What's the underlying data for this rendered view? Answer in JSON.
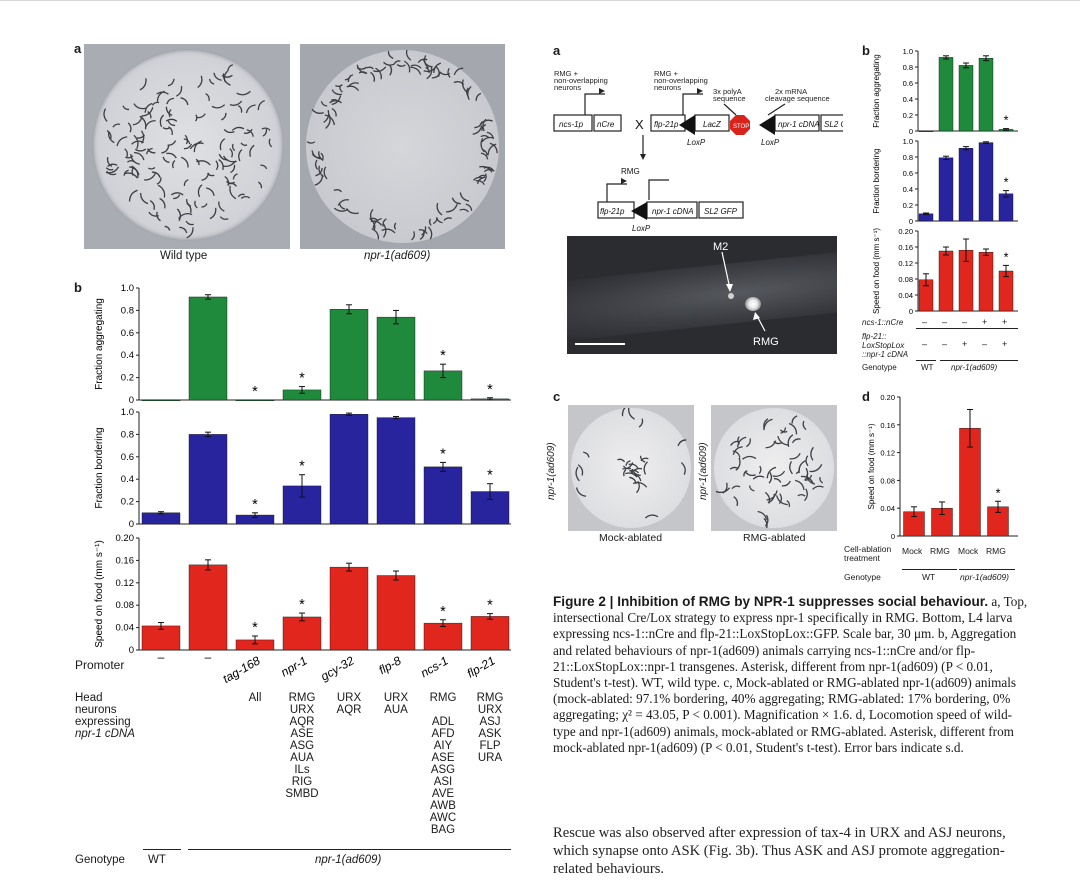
{
  "left": {
    "panel_a": {
      "label": "a",
      "images": [
        {
          "caption": "Wild type"
        },
        {
          "caption": "npr-1(ad609)"
        }
      ]
    },
    "panel_b": {
      "label": "b"
    },
    "promoter_header": "Promoter",
    "neuron_header": [
      "Head",
      "neurons",
      "expressing",
      "npr-1 cDNA"
    ],
    "genotype_header": "Genotype",
    "genotype_values": [
      "WT",
      "npr-1(ad609)"
    ],
    "promoters": [
      "–",
      "–",
      "tag-168",
      "npr-1",
      "gcy-32",
      "flp-8",
      "ncs-1",
      "flp-21"
    ],
    "neurons": [
      [],
      [],
      [
        "All"
      ],
      [
        "RMG",
        "URX",
        "AQR",
        "ASE",
        "ASG",
        "AUA",
        "ILs",
        "RIG",
        "SMBD"
      ],
      [
        "URX",
        "AQR"
      ],
      [
        "URX",
        "AUA"
      ],
      [
        "RMG",
        "",
        "ADL",
        "AFD",
        "AIY",
        "ASE",
        "ASG",
        "ASI",
        "AVE",
        "AWB",
        "AWC",
        "BAG"
      ],
      [
        "RMG",
        "URX",
        "ASJ",
        "ASK",
        "FLP",
        "URA"
      ]
    ]
  },
  "right": {
    "panel_a": {
      "label": "a",
      "labels": [
        "RMG +",
        "non-overlapping",
        "neurons",
        "RMG +",
        "non-overlapping",
        "neurons",
        "3x polyA",
        "sequence",
        "2x mRNA",
        "cleavage sequence",
        "ncs-1p",
        "nCre",
        "X",
        "flp-21p",
        "LacZ",
        "STOP",
        "npr-1 cDNA",
        "SL2 GFP",
        "LoxP",
        "LoxP",
        "RMG",
        "flp-21p",
        "npr-1 cDNA",
        "SL2 GFP",
        "LoxP"
      ],
      "micro_labels": [
        "M2",
        "RMG"
      ]
    },
    "panel_b": {
      "label": "b",
      "table_rows": [
        {
          "label": "ncs-1::nCre",
          "values": [
            "–",
            "–",
            "–",
            "+",
            "+"
          ]
        },
        {
          "label": [
            "flp-21::",
            "LoxStopLox",
            "::npr-1 cDNA"
          ],
          "values": [
            "–",
            "–",
            "+",
            "–",
            "+"
          ]
        }
      ],
      "genotype_header": "Genotype",
      "genotypes": [
        "WT",
        "npr-1(ad609)"
      ]
    },
    "panel_c": {
      "label": "c",
      "images": [
        {
          "side": "npr-1(ad609)",
          "caption": "Mock-ablated"
        },
        {
          "side": "npr-1(ad609)",
          "caption": "RMG-ablated"
        }
      ]
    },
    "panel_d": {
      "label": "d",
      "treatment_header": [
        "Cell-ablation",
        "treatment"
      ],
      "treatments": [
        "Mock",
        "RMG",
        "Mock",
        "RMG"
      ],
      "genotype_header": "Genotype",
      "genotypes": [
        "WT",
        "npr-1(ad609)"
      ]
    }
  },
  "caption": {
    "head": "Figure 2 | Inhibition of RMG by NPR-1 suppresses social behaviour.",
    "body": "a, Top, intersectional Cre/Lox strategy to express npr-1 specifically in RMG. Bottom, L4 larva expressing ncs-1::nCre and flp-21::LoxStopLox::GFP. Scale bar, 30 μm. b, Aggregation and related behaviours of npr-1(ad609) animals carrying ncs-1::nCre and/or flp-21::LoxStopLox::npr-1 transgenes. Asterisk, different from npr-1(ad609) (P < 0.01, Student's t-test). WT, wild type. c, Mock-ablated or RMG-ablated npr-1(ad609) animals (mock-ablated: 97.1% bordering, 40% aggregating; RMG-ablated: 17% bordering, 0% aggregating; χ² = 43.05, P < 0.001). Magnification × 1.6. d, Locomotion speed of wild-type and npr-1(ad609) animals, mock-ablated or RMG-ablated. Asterisk, different from mock-ablated npr-1(ad609) (P < 0.01, Student's t-test). Error bars indicate s.d."
  },
  "body_text": "Rescue was also observed after expression of tax-4 in URX and ASJ neurons, which synapse onto ASK (Fig. 3b). Thus ASK and ASJ promote aggregation-related behaviours.",
  "chart_data": [
    {
      "id": "L-agg",
      "type": "bar",
      "ylabel": "Fraction aggregating",
      "ylim": [
        0,
        1.0
      ],
      "yticks": [
        "0",
        "0.2",
        "0.4",
        "0.6",
        "0.8",
        "1.0"
      ],
      "tickvals": [
        0,
        0.2,
        0.4,
        0.6,
        0.8,
        1.0
      ],
      "color": "#1f8a3c",
      "values": [
        0.0,
        0.92,
        0.0,
        0.09,
        0.81,
        0.74,
        0.26,
        0.01
      ],
      "errors": [
        0,
        0.02,
        0,
        0.03,
        0.04,
        0.06,
        0.06,
        0.01
      ],
      "stars": [
        false,
        false,
        true,
        true,
        false,
        false,
        true,
        true
      ]
    },
    {
      "id": "L-bord",
      "type": "bar",
      "ylabel": "Fraction bordering",
      "ylim": [
        0,
        1.0
      ],
      "yticks": [
        "0",
        "0.2",
        "0.4",
        "0.6",
        "0.8",
        "1.0"
      ],
      "tickvals": [
        0,
        0.2,
        0.4,
        0.6,
        0.8,
        1.0
      ],
      "color": "#27249e",
      "values": [
        0.1,
        0.8,
        0.08,
        0.34,
        0.98,
        0.95,
        0.51,
        0.29
      ],
      "errors": [
        0.01,
        0.02,
        0.02,
        0.1,
        0.01,
        0.01,
        0.04,
        0.07
      ],
      "stars": [
        false,
        false,
        true,
        true,
        false,
        false,
        true,
        true
      ]
    },
    {
      "id": "L-speed",
      "type": "bar",
      "ylabel": "Speed on food (mm s⁻¹)",
      "ylim": [
        0,
        0.2
      ],
      "yticks": [
        "0",
        "0.04",
        "0.08",
        "0.12",
        "0.16",
        "0.20"
      ],
      "tickvals": [
        0,
        0.04,
        0.08,
        0.12,
        0.16,
        0.2
      ],
      "color": "#e0261d",
      "values": [
        0.043,
        0.152,
        0.018,
        0.059,
        0.148,
        0.133,
        0.048,
        0.06
      ],
      "errors": [
        0.006,
        0.009,
        0.007,
        0.007,
        0.007,
        0.008,
        0.006,
        0.005
      ],
      "stars": [
        false,
        false,
        true,
        true,
        false,
        false,
        true,
        true
      ]
    },
    {
      "id": "R-agg",
      "type": "bar",
      "ylabel": "Fraction aggregating",
      "ylim": [
        0,
        1.0
      ],
      "yticks": [
        "0",
        "0.2",
        "0.4",
        "0.6",
        "0.8",
        "1.0"
      ],
      "tickvals": [
        0,
        0.2,
        0.4,
        0.6,
        0.8,
        1.0
      ],
      "color": "#1f8a3c",
      "values": [
        0.0,
        0.92,
        0.82,
        0.91,
        0.02
      ],
      "errors": [
        0,
        0.02,
        0.03,
        0.03,
        0.01
      ],
      "stars": [
        false,
        false,
        false,
        false,
        true
      ]
    },
    {
      "id": "R-bord",
      "type": "bar",
      "ylabel": "Fraction bordering",
      "ylim": [
        0,
        1.0
      ],
      "yticks": [
        "0",
        "0.2",
        "0.4",
        "0.6",
        "0.8",
        "1.0"
      ],
      "tickvals": [
        0,
        0.2,
        0.4,
        0.6,
        0.8,
        1.0
      ],
      "color": "#27249e",
      "values": [
        0.09,
        0.79,
        0.91,
        0.98,
        0.34
      ],
      "errors": [
        0.01,
        0.02,
        0.02,
        0.01,
        0.04
      ],
      "stars": [
        false,
        false,
        false,
        false,
        true
      ]
    },
    {
      "id": "R-speed",
      "type": "bar",
      "ylabel": "Speed on food (mm s⁻¹)",
      "ylim": [
        0,
        0.2
      ],
      "yticks": [
        "0",
        "0.04",
        "0.08",
        "0.12",
        "0.16",
        "0.20"
      ],
      "tickvals": [
        0,
        0.04,
        0.08,
        0.12,
        0.16,
        0.2
      ],
      "color": "#e0261d",
      "values": [
        0.078,
        0.15,
        0.152,
        0.147,
        0.1
      ],
      "errors": [
        0.015,
        0.01,
        0.028,
        0.008,
        0.014
      ],
      "stars": [
        false,
        false,
        false,
        false,
        true
      ]
    },
    {
      "id": "R-d",
      "type": "bar",
      "ylabel": "Speed on food (mm s⁻¹)",
      "ylim": [
        0,
        0.2
      ],
      "yticks": [
        "0",
        "0.04",
        "0.08",
        "0.12",
        "0.16",
        "0.20"
      ],
      "tickvals": [
        0,
        0.04,
        0.08,
        0.12,
        0.16,
        0.2
      ],
      "color": "#e0261d",
      "values": [
        0.035,
        0.04,
        0.155,
        0.042
      ],
      "errors": [
        0.007,
        0.009,
        0.027,
        0.008
      ],
      "stars": [
        false,
        false,
        false,
        true
      ]
    }
  ]
}
